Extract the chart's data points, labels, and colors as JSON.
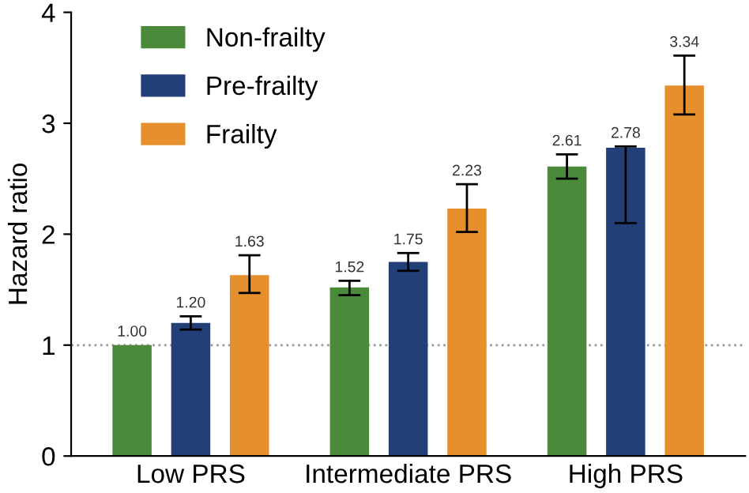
{
  "chart_data": {
    "type": "bar",
    "ylabel": "Hazard ratio",
    "categories": [
      "Low PRS",
      "Intermediate PRS",
      "High PRS"
    ],
    "series": [
      {
        "name": "Non-frailty",
        "color": "#4b8a3b",
        "values": [
          1.0,
          1.52,
          2.61
        ],
        "value_labels": [
          "1.00",
          "1.52",
          "2.61"
        ],
        "errors": [
          null,
          [
            1.45,
            1.58
          ],
          [
            2.5,
            2.72
          ]
        ]
      },
      {
        "name": "Pre-frailty",
        "color": "#223f78",
        "values": [
          1.2,
          1.75,
          2.78
        ],
        "value_labels": [
          "1.20",
          "1.75",
          "2.78"
        ],
        "errors": [
          [
            1.14,
            1.26
          ],
          [
            1.67,
            1.83
          ],
          [
            2.1,
            2.79
          ]
        ]
      },
      {
        "name": "Frailty",
        "color": "#e5902c",
        "values": [
          1.63,
          2.23,
          3.34
        ],
        "value_labels": [
          "1.63",
          "2.23",
          "3.34"
        ],
        "errors": [
          [
            1.47,
            1.81
          ],
          [
            2.02,
            2.45
          ],
          [
            3.08,
            3.61
          ]
        ]
      }
    ],
    "ylim": [
      0,
      4
    ],
    "yticks": [
      0,
      1,
      2,
      3,
      4
    ],
    "grid": false,
    "legend": "top left",
    "ref_lines": [
      {
        "axis": "y",
        "value": 1,
        "color": "#999999",
        "line_style": "dotted"
      }
    ]
  }
}
